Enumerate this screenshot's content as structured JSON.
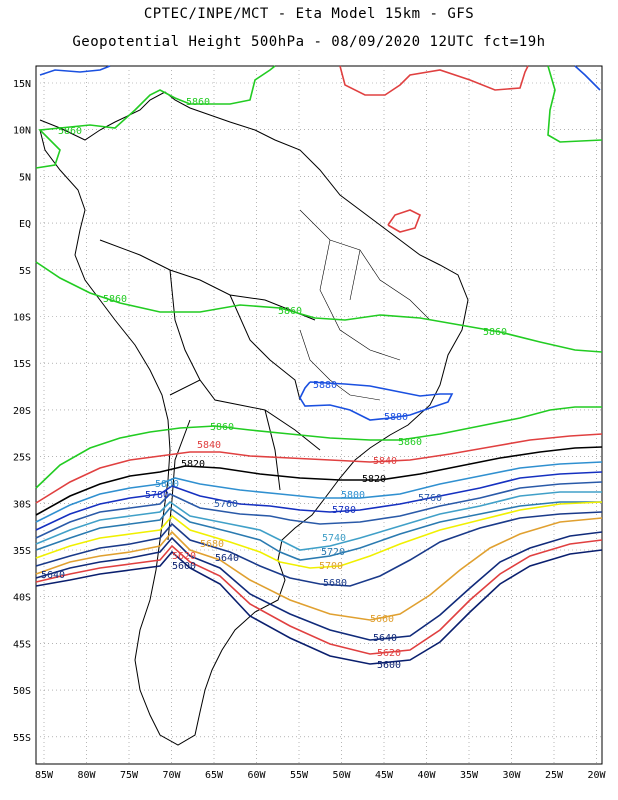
{
  "header": {
    "line1": "CPTEC/INPE/MCT -  Eta Model 15km - GFS",
    "line2": "Geopotential Height 500hPa - 08/09/2020 12UTC fct=19h"
  },
  "axes": {
    "lat_labels": [
      "15N",
      "10N",
      "5N",
      "EQ",
      "5S",
      "10S",
      "15S",
      "20S",
      "25S",
      "30S",
      "35S",
      "40S",
      "45S",
      "50S",
      "55S"
    ],
    "lon_labels": [
      "85W",
      "80W",
      "75W",
      "70W",
      "65W",
      "60W",
      "55W",
      "50W",
      "45W",
      "40W",
      "35W",
      "30W",
      "25W",
      "20W"
    ]
  },
  "contours": [
    {
      "level": "5600",
      "color": "#0a1f6e"
    },
    {
      "level": "5620",
      "color": "#e04040"
    },
    {
      "level": "5640",
      "color": "#102a7a"
    },
    {
      "level": "5660",
      "color": "#e0a030"
    },
    {
      "level": "5680",
      "color": "#1a3a8a"
    },
    {
      "level": "5700",
      "color": "#f0f000"
    },
    {
      "level": "5720",
      "color": "#2a7ab0"
    },
    {
      "level": "5740",
      "color": "#40a0c8"
    },
    {
      "level": "5760",
      "color": "#2a5aa8"
    },
    {
      "level": "5780",
      "color": "#1530c0"
    },
    {
      "level": "5800",
      "color": "#3090d0"
    },
    {
      "level": "5820",
      "color": "#000000"
    },
    {
      "level": "5840",
      "color": "#e04040"
    },
    {
      "level": "5860",
      "color": "#22cc22"
    },
    {
      "level": "5880",
      "color": "#1a50e0"
    }
  ]
}
